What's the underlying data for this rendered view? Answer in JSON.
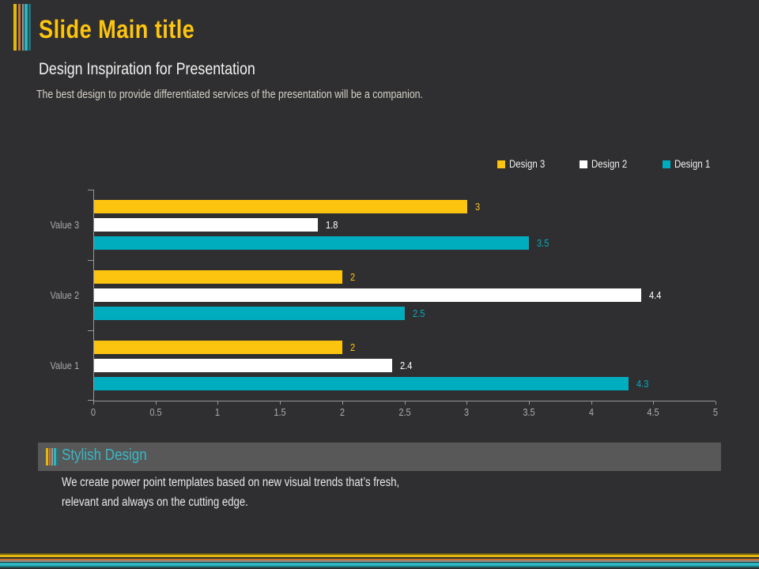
{
  "slide": {
    "title": "Slide Main title",
    "subtitle": "Design Inspiration for Presentation",
    "tagline": "The best design to provide differentiated services of the presentation will be a companion."
  },
  "chart_data": {
    "type": "bar",
    "orientation": "horizontal",
    "title": "",
    "xlabel": "",
    "ylabel": "",
    "categories": [
      "Value 3",
      "Value 2",
      "Value 1"
    ],
    "series": [
      {
        "name": "Design 3",
        "color": "#fdc40f",
        "values": [
          3,
          2,
          2
        ],
        "labels": [
          "3",
          "2",
          "2"
        ]
      },
      {
        "name": "Design 2",
        "color": "#ffffff",
        "values": [
          1.8,
          4.4,
          2.4
        ],
        "labels": [
          "1.8",
          "4.4",
          "2.4"
        ]
      },
      {
        "name": "Design 1",
        "color": "#00adbf",
        "values": [
          3.5,
          2.5,
          4.3
        ],
        "labels": [
          "3.5",
          "2.5",
          "4.3"
        ]
      }
    ],
    "xlim": [
      0,
      5
    ],
    "xtick_labels": [
      "0",
      "0.5",
      "1",
      "1.5",
      "2",
      "2.5",
      "3",
      "3.5",
      "4",
      "4.5",
      "5"
    ],
    "grid": false,
    "legend_position": "top-right",
    "value_labels": true
  },
  "callout": {
    "heading": "Stylish Design",
    "body_line1": "We create power point templates based on new visual trends that’s fresh,",
    "body_line2": "relevant and always on the cutting edge."
  },
  "decorations": {
    "background": "#2f2f31",
    "title_color": "#fdc40f",
    "callout_bar_color": "#585858",
    "callout_heading_color": "#38b7c6",
    "axis_color": "#979797",
    "stripe_colors": [
      "#e3b70e",
      "#c8742c",
      "#999999",
      "#2bb6c1",
      "#1b7680"
    ]
  }
}
